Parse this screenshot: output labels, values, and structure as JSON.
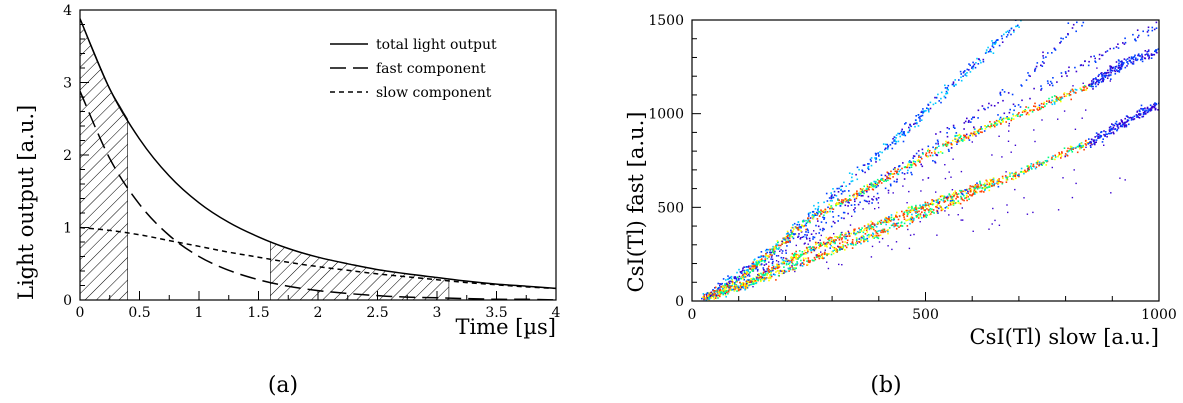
{
  "chart_data": [
    {
      "panel_label": "(a)",
      "type": "line",
      "xlabel": "Time [µs]",
      "ylabel": "Light output [a.u.]",
      "xlim": [
        0,
        4
      ],
      "ylim": [
        0,
        4
      ],
      "x_ticks": [
        "0",
        "0.5",
        "1",
        "1.5",
        "2",
        "2.5",
        "3",
        "3.5",
        "4"
      ],
      "y_ticks": [
        "0",
        "1",
        "2",
        "3",
        "4"
      ],
      "legend_position": "top-right",
      "series": [
        {
          "name": "total light output",
          "style": "solid",
          "x": [
            0,
            0.25,
            0.5,
            0.75,
            1,
            1.25,
            1.5,
            1.75,
            2,
            2.25,
            2.5,
            2.75,
            3,
            3.25,
            3.5,
            3.75,
            4
          ],
          "y": [
            3.88,
            2.91,
            2.22,
            1.71,
            1.34,
            1.07,
            0.87,
            0.71,
            0.59,
            0.5,
            0.42,
            0.36,
            0.31,
            0.26,
            0.22,
            0.19,
            0.16
          ]
        },
        {
          "name": "fast component",
          "style": "long-dash",
          "x": [
            0,
            0.25,
            0.5,
            0.75,
            1,
            1.25,
            1.5,
            1.75,
            2,
            2.25,
            2.5,
            2.75,
            3,
            3.25,
            3.5,
            3.75,
            4
          ],
          "y": [
            2.88,
            1.95,
            1.32,
            0.89,
            0.6,
            0.41,
            0.28,
            0.19,
            0.13,
            0.09,
            0.06,
            0.04,
            0.03,
            0.02,
            0.01,
            0.01,
            0.0
          ]
        },
        {
          "name": "slow component",
          "style": "short-dash",
          "x": [
            0,
            0.25,
            0.5,
            0.75,
            1,
            1.25,
            1.5,
            1.75,
            2,
            2.25,
            2.5,
            2.75,
            3,
            3.25,
            3.5,
            3.75,
            4
          ],
          "y": [
            1.0,
            0.96,
            0.9,
            0.82,
            0.74,
            0.66,
            0.59,
            0.52,
            0.46,
            0.41,
            0.36,
            0.32,
            0.28,
            0.24,
            0.21,
            0.18,
            0.16
          ]
        }
      ],
      "shaded_regions": [
        {
          "name": "fast integration window",
          "x": [
            0,
            0.4
          ]
        },
        {
          "name": "slow integration window",
          "x": [
            1.6,
            3.1
          ]
        }
      ]
    },
    {
      "panel_label": "(b)",
      "type": "scatter",
      "xlabel": "CsI(Tl) slow [a.u.]",
      "ylabel": "CsI(Tl) fast [a.u.]",
      "xlim": [
        0,
        1000
      ],
      "ylim": [
        0,
        1500
      ],
      "x_ticks": [
        "0",
        "500",
        "1000"
      ],
      "y_ticks": [
        "0",
        "500",
        "1000",
        "1500"
      ],
      "colormap": [
        "#3a00d0",
        "#0040ff",
        "#00c8ff",
        "#00ff80",
        "#ffff00",
        "#ff4000"
      ],
      "bands": [
        {
          "density": "medium",
          "points": [
            [
              25,
              20
            ],
            [
              150,
              240
            ],
            [
              300,
              560
            ],
            [
              450,
              900
            ],
            [
              600,
              1260
            ],
            [
              700,
              1500
            ]
          ]
        },
        {
          "density": "low",
          "points": [
            [
              25,
              20
            ],
            [
              150,
              220
            ],
            [
              300,
              470
            ],
            [
              500,
              820
            ],
            [
              700,
              1160
            ],
            [
              830,
              1500
            ]
          ]
        },
        {
          "density": "low",
          "points": [
            [
              25,
              20
            ],
            [
              200,
              260
            ],
            [
              400,
              580
            ],
            [
              600,
              900
            ],
            [
              800,
              1220
            ],
            [
              1000,
              1480
            ]
          ]
        },
        {
          "density": "high",
          "points": [
            [
              25,
              20
            ],
            [
              100,
              120
            ],
            [
              250,
              440
            ],
            [
              400,
              640
            ],
            [
              550,
              850
            ],
            [
              700,
              1000
            ],
            [
              850,
              1150
            ]
          ]
        },
        {
          "density": "low",
          "points": [
            [
              850,
              1150
            ],
            [
              920,
              1270
            ],
            [
              1000,
              1340
            ]
          ]
        },
        {
          "density": "high",
          "points": [
            [
              25,
              20
            ],
            [
              100,
              80
            ],
            [
              250,
              280
            ],
            [
              400,
              420
            ],
            [
              550,
              560
            ],
            [
              650,
              650
            ]
          ]
        },
        {
          "density": "high",
          "points": [
            [
              25,
              20
            ],
            [
              100,
              70
            ],
            [
              250,
              220
            ],
            [
              400,
              370
            ],
            [
              550,
              520
            ],
            [
              700,
              690
            ],
            [
              850,
              850
            ]
          ]
        },
        {
          "density": "low",
          "points": [
            [
              850,
              850
            ],
            [
              1000,
              1060
            ]
          ]
        }
      ]
    }
  ]
}
